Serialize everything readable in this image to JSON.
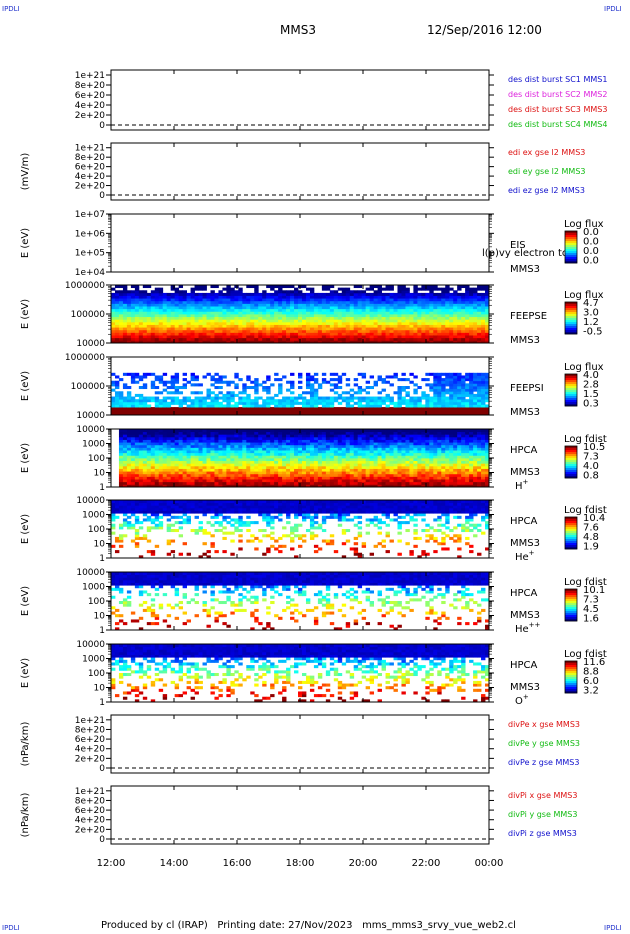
{
  "header": {
    "corner_left_top": "IPDLI",
    "corner_right_top": "IPDLI",
    "corner_left_bottom": "IPDLI",
    "corner_right_bottom": "IPDLI",
    "mission": "MMS3",
    "date": "12/Sep/2016 12:00"
  },
  "footer": {
    "produced_by": "Produced by cl (IRAP)",
    "printing_date": "Printing date: 27/Nov/2023",
    "script_name": "mms_mms3_srvy_vue_web2.cl"
  },
  "chart_data": [
    {
      "type": "line",
      "panel": "des-dist",
      "ylabel": "",
      "ylim": [
        0,
        1.1e+21
      ],
      "y_ticks": [
        "0",
        "2e+20",
        "4e+20",
        "6e+20",
        "8e+20",
        "1e+21"
      ],
      "series": [
        {
          "name": "des dist burst SC1 MMS1",
          "color": "#1010cc"
        },
        {
          "name": "des dist burst SC2 MMS2",
          "color": "#dd22dd"
        },
        {
          "name": "des dist burst SC3 MMS3",
          "color": "#dd1111"
        },
        {
          "name": "des dist burst SC4 MMS4",
          "color": "#11bb11"
        }
      ]
    },
    {
      "type": "line",
      "panel": "edi",
      "ylabel": "(mV/m)",
      "ylim": [
        0,
        1.1e+21
      ],
      "y_ticks": [
        "0",
        "2e+20",
        "4e+20",
        "6e+20",
        "8e+20",
        "1e+21"
      ],
      "series": [
        {
          "name": "edi ex gse l2 MMS3",
          "color": "#dd1111"
        },
        {
          "name": "edi ey gse l2 MMS3",
          "color": "#11bb11"
        },
        {
          "name": "edi ez gse l2 MMS3",
          "color": "#1010cc"
        }
      ]
    },
    {
      "type": "heatmap",
      "panel": "eis",
      "ylabel": "E (eV)",
      "scale": "log",
      "ylim": [
        10000,
        10000000
      ],
      "y_ticks": [
        "1e+04",
        "1e+05",
        "1e+06",
        "1e+07"
      ],
      "labels": [
        "EIS",
        "MMS3"
      ],
      "overlay_text": "l(p)vy electron to",
      "colorbar": {
        "title": "Log flux",
        "ticks": [
          "0.0",
          "0.0",
          "0.0",
          "0.0"
        ]
      },
      "fill": 0
    },
    {
      "type": "heatmap",
      "panel": "feepse",
      "ylabel": "E (eV)",
      "scale": "log",
      "ylim": [
        10000,
        1000000
      ],
      "y_ticks": [
        "10000",
        "100000",
        "1000000"
      ],
      "labels": [
        "FEEPSE",
        "MMS3"
      ],
      "colorbar": {
        "title": "Log flux",
        "ticks": [
          "4.7",
          "3.0",
          "1.2",
          "-0.5"
        ]
      },
      "fill": 1
    },
    {
      "type": "heatmap",
      "panel": "feepsi",
      "ylabel": "E (eV)",
      "scale": "log",
      "ylim": [
        10000,
        1000000
      ],
      "y_ticks": [
        "10000",
        "100000",
        "1000000"
      ],
      "labels": [
        "FEEPSI",
        "MMS3"
      ],
      "colorbar": {
        "title": "Log flux",
        "ticks": [
          "4.0",
          "2.8",
          "1.5",
          "0.3"
        ]
      },
      "fill": 0.45
    },
    {
      "type": "heatmap",
      "panel": "hpca-h",
      "ylabel": "E (eV)",
      "scale": "log",
      "ylim": [
        1,
        10000
      ],
      "y_ticks": [
        "1",
        "10",
        "100",
        "1000",
        "10000"
      ],
      "labels": [
        "HPCA",
        "MMS3"
      ],
      "species": "H",
      "species_sup": "+",
      "colorbar": {
        "title": "Log fdist",
        "ticks": [
          "10.5",
          "7.3",
          "4.0",
          "0.8"
        ]
      },
      "fill": 0.95
    },
    {
      "type": "heatmap",
      "panel": "hpca-he",
      "ylabel": "E (eV)",
      "scale": "log",
      "ylim": [
        1,
        10000
      ],
      "y_ticks": [
        "1",
        "10",
        "100",
        "1000",
        "10000"
      ],
      "labels": [
        "HPCA",
        "MMS3"
      ],
      "species": "He",
      "species_sup": "+",
      "colorbar": {
        "title": "Log fdist",
        "ticks": [
          "10.4",
          "7.6",
          "4.8",
          "1.9"
        ]
      },
      "fill": 0.45
    },
    {
      "type": "heatmap",
      "panel": "hpca-hepp",
      "ylabel": "E (eV)",
      "scale": "log",
      "ylim": [
        1,
        10000
      ],
      "y_ticks": [
        "1",
        "10",
        "100",
        "1000",
        "10000"
      ],
      "labels": [
        "HPCA",
        "MMS3"
      ],
      "species": "He",
      "species_sup": "++",
      "colorbar": {
        "title": "Log fdist",
        "ticks": [
          "10.1",
          "7.3",
          "4.5",
          "1.6"
        ]
      },
      "fill": 0.4
    },
    {
      "type": "heatmap",
      "panel": "hpca-o",
      "ylabel": "E (eV)",
      "scale": "log",
      "ylim": [
        1,
        10000
      ],
      "y_ticks": [
        "1",
        "10",
        "100",
        "1000",
        "10000"
      ],
      "labels": [
        "HPCA",
        "MMS3"
      ],
      "species": "O",
      "species_sup": "+",
      "colorbar": {
        "title": "Log fdist",
        "ticks": [
          "11.6",
          "8.8",
          "6.0",
          "3.2"
        ]
      },
      "fill": 0.5
    },
    {
      "type": "line",
      "panel": "divpe",
      "ylabel": "(nPa/km)",
      "ylim": [
        0,
        1.1e+21
      ],
      "y_ticks": [
        "0",
        "2e+20",
        "4e+20",
        "6e+20",
        "8e+20",
        "1e+21"
      ],
      "series": [
        {
          "name": "divPe x gse MMS3",
          "color": "#dd1111"
        },
        {
          "name": "divPe y gse MMS3",
          "color": "#11bb11"
        },
        {
          "name": "divPe z gse MMS3",
          "color": "#1010cc"
        }
      ]
    },
    {
      "type": "line",
      "panel": "divpi",
      "ylabel": "(nPa/km)",
      "ylim": [
        0,
        1.1e+21
      ],
      "y_ticks": [
        "0",
        "2e+20",
        "4e+20",
        "6e+20",
        "8e+20",
        "1e+21"
      ],
      "series": [
        {
          "name": "divPi x gse MMS3",
          "color": "#dd1111"
        },
        {
          "name": "divPi y gse MMS3",
          "color": "#11bb11"
        },
        {
          "name": "divPi z gse MMS3",
          "color": "#1010cc"
        }
      ]
    }
  ],
  "x_axis": {
    "ticks": [
      "12:00",
      "14:00",
      "16:00",
      "18:00",
      "20:00",
      "22:00",
      "00:00"
    ]
  }
}
